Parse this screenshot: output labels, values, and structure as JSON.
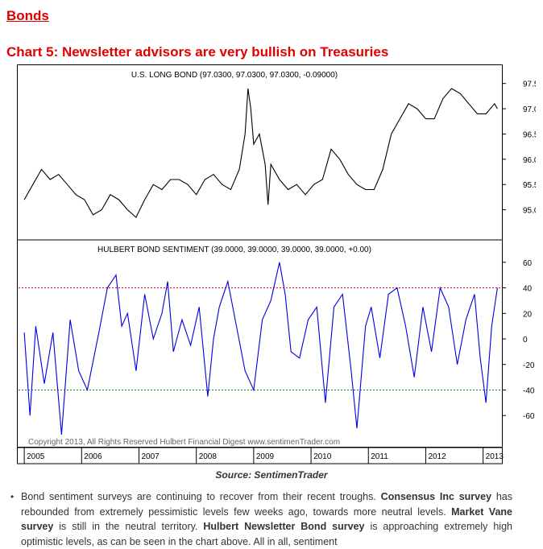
{
  "section_heading": "Bonds",
  "chart_title": "Chart 5: Newsletter advisors are very bullish on Treasuries",
  "source": "Source: SentimenTrader",
  "paragraph": {
    "t1": "Bond sentiment surveys are continuing to recover from their recent troughs. ",
    "b1": "Consensus Inc survey",
    "t2": " has rebounded from extremely pessimistic levels few weeks ago, towards more neutral levels. ",
    "b2": "Market Vane survey",
    "t3": " is still in the neutral territory. ",
    "b3": "Hulbert Newsletter Bond survey",
    "t4": " is approaching extremely high optimistic levels, as can be seen in the chart above. All in all, sentiment"
  },
  "colors": {
    "heading": "#e00000",
    "bond_line": "#000000",
    "sentiment_line": "#0000e0",
    "upper_band": "#e00000",
    "lower_band": "#008000"
  },
  "chart_data": [
    {
      "type": "line",
      "title": "U.S. LONG BOND (97.0300, 97.0300, 97.0300, -0.09000)",
      "ylim": [
        94.5,
        97.75
      ],
      "yticks": [
        "97.5",
        "97.0",
        "96.5",
        "96.0",
        "95.5",
        "95.0"
      ],
      "ytick_values": [
        97.5,
        97.0,
        96.5,
        96.0,
        95.5,
        95.0
      ],
      "grid": false,
      "series": [
        {
          "x": [
            2005.0,
            2005.15,
            2005.3,
            2005.45,
            2005.6,
            2005.75,
            2005.9,
            2006.05,
            2006.2,
            2006.35,
            2006.5,
            2006.65,
            2006.8,
            2006.95,
            2007.1,
            2007.25,
            2007.4,
            2007.55,
            2007.7,
            2007.85,
            2008.0,
            2008.15,
            2008.3,
            2008.45,
            2008.6,
            2008.75,
            2008.85,
            2008.9,
            2008.95,
            2009.0,
            2009.1,
            2009.2,
            2009.25,
            2009.3,
            2009.45,
            2009.6,
            2009.75,
            2009.9,
            2010.05,
            2010.2,
            2010.35,
            2010.5,
            2010.65,
            2010.8,
            2010.95,
            2011.1,
            2011.25,
            2011.4,
            2011.55,
            2011.7,
            2011.85,
            2012.0,
            2012.15,
            2012.3,
            2012.45,
            2012.6,
            2012.75,
            2012.9,
            2013.05,
            2013.2,
            2013.25
          ],
          "values": [
            95.2,
            95.5,
            95.8,
            95.6,
            95.7,
            95.5,
            95.3,
            95.2,
            94.9,
            95.0,
            95.3,
            95.2,
            95.0,
            94.85,
            95.2,
            95.5,
            95.4,
            95.6,
            95.6,
            95.5,
            95.3,
            95.6,
            95.7,
            95.5,
            95.4,
            95.8,
            96.5,
            97.4,
            97.0,
            96.3,
            96.5,
            95.9,
            95.1,
            95.9,
            95.6,
            95.4,
            95.5,
            95.3,
            95.5,
            95.6,
            96.2,
            96.0,
            95.7,
            95.5,
            95.4,
            95.4,
            95.8,
            96.5,
            96.8,
            97.1,
            97.0,
            96.8,
            96.8,
            97.2,
            97.4,
            97.3,
            97.1,
            96.9,
            96.9,
            97.1,
            97.0
          ]
        }
      ]
    },
    {
      "type": "line",
      "title": "HULBERT BOND SENTIMENT (39.0000, 39.0000, 39.0000, 39.0000, +0.00)",
      "ylim": [
        -75,
        70
      ],
      "yticks": [
        "60",
        "40",
        "20",
        "0",
        "-20",
        "-40",
        "-60"
      ],
      "ytick_values": [
        60,
        40,
        20,
        0,
        -20,
        -40,
        -60
      ],
      "reference_lines": [
        40,
        -40
      ],
      "grid": false,
      "series": [
        {
          "x": [
            2005.0,
            2005.1,
            2005.2,
            2005.35,
            2005.5,
            2005.65,
            2005.8,
            2005.95,
            2006.1,
            2006.3,
            2006.45,
            2006.6,
            2006.7,
            2006.8,
            2006.95,
            2007.1,
            2007.25,
            2007.4,
            2007.5,
            2007.6,
            2007.75,
            2007.9,
            2008.05,
            2008.2,
            2008.3,
            2008.4,
            2008.55,
            2008.7,
            2008.85,
            2009.0,
            2009.15,
            2009.3,
            2009.45,
            2009.55,
            2009.65,
            2009.8,
            2009.95,
            2010.1,
            2010.25,
            2010.4,
            2010.55,
            2010.7,
            2010.8,
            2010.95,
            2011.05,
            2011.2,
            2011.35,
            2011.5,
            2011.65,
            2011.8,
            2011.95,
            2012.1,
            2012.25,
            2012.4,
            2012.55,
            2012.7,
            2012.85,
            2012.95,
            2013.05,
            2013.15,
            2013.25
          ],
          "values": [
            5,
            -60,
            10,
            -35,
            5,
            -75,
            15,
            -25,
            -40,
            5,
            40,
            50,
            10,
            20,
            -25,
            35,
            0,
            20,
            45,
            -10,
            15,
            -5,
            25,
            -45,
            0,
            25,
            45,
            10,
            -25,
            -40,
            15,
            30,
            60,
            35,
            -10,
            -15,
            15,
            25,
            -50,
            25,
            35,
            -25,
            -70,
            10,
            25,
            -15,
            35,
            40,
            10,
            -30,
            25,
            -10,
            40,
            25,
            -20,
            15,
            35,
            -15,
            -50,
            10,
            40
          ]
        }
      ]
    }
  ],
  "x_axis": {
    "labels": [
      "2005",
      "2006",
      "2007",
      "2008",
      "2009",
      "2010",
      "2011",
      "2012",
      "2013"
    ],
    "start": 2004.9,
    "end": 2013.3
  },
  "copyright": "Copyright 2013, All Rights Reserved  Hulbert Financial Digest  www.sentimenTrader.com"
}
